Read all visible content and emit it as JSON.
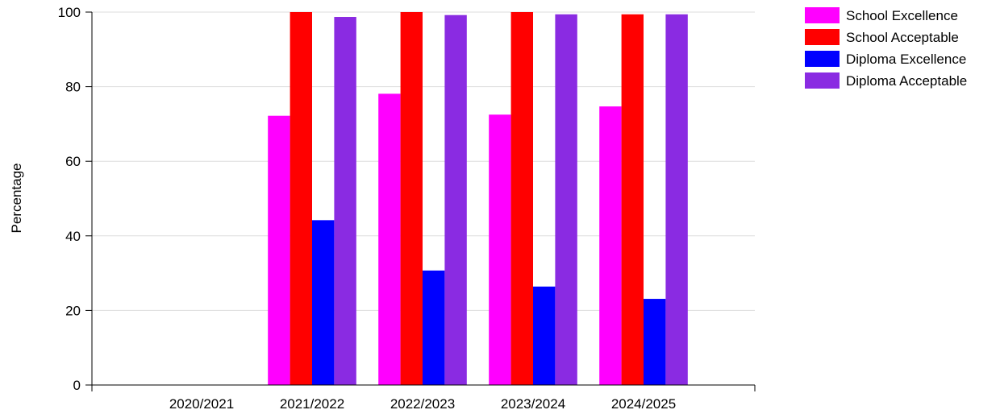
{
  "chart_data": {
    "type": "bar",
    "title": "",
    "xlabel": "",
    "ylabel": "Percentage",
    "ylim": [
      0,
      100
    ],
    "yticks": [
      0,
      20,
      40,
      60,
      80,
      100
    ],
    "grid": true,
    "legend_position": "top-right",
    "categories": [
      "2020/2021",
      "2021/2022",
      "2022/2023",
      "2023/2024",
      "2024/2025"
    ],
    "series": [
      {
        "name": "School Excellence",
        "color": "#ff00ff",
        "values": [
          null,
          72.2,
          78.1,
          72.5,
          74.7
        ]
      },
      {
        "name": "School Acceptable",
        "color": "#ff0000",
        "values": [
          null,
          100,
          100,
          100,
          99.4
        ]
      },
      {
        "name": "Diploma Excellence",
        "color": "#0000ff",
        "values": [
          null,
          44.2,
          30.7,
          26.4,
          23.1
        ]
      },
      {
        "name": "Diploma Acceptable",
        "color": "#8a2be2",
        "values": [
          null,
          98.7,
          99.2,
          99.4,
          99.4
        ]
      }
    ]
  }
}
